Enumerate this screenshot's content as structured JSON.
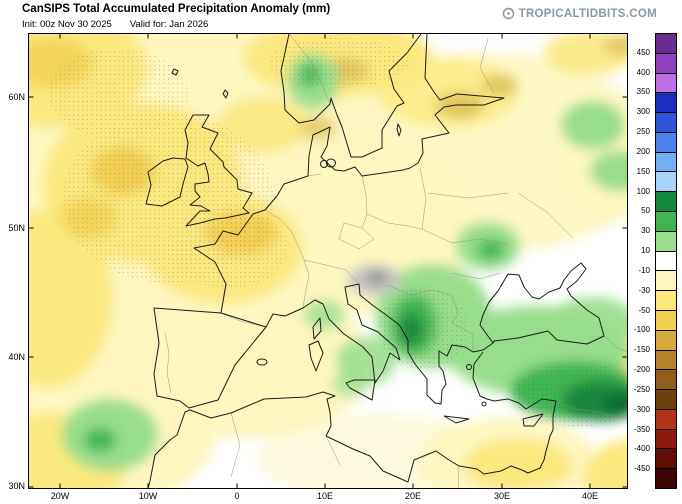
{
  "header": {
    "title": "CanSIPS Total Accumulated Precipitation Anomaly (mm)",
    "init": "Init: 00z Nov 30 2025",
    "valid": "Valid for: Jan 2026",
    "watermark": "TROPICALTIDBITS.COM"
  },
  "map": {
    "lat_labels": [
      "60N",
      "50N",
      "40N",
      "30N"
    ],
    "lon_labels": [
      "20W",
      "10W",
      "0",
      "10E",
      "20E",
      "30E",
      "40E"
    ]
  },
  "colorbar": {
    "tick_labels": [
      "450",
      "400",
      "350",
      "300",
      "250",
      "200",
      "150",
      "100",
      "50",
      "30",
      "10",
      "-10",
      "-30",
      "-50",
      "-100",
      "-150",
      "-200",
      "-250",
      "-300",
      "-350",
      "-400",
      "-450"
    ],
    "colors": [
      "#6b2c91",
      "#9141bf",
      "#c06ee3",
      "#1c2dbd",
      "#2d54d9",
      "#4a82ea",
      "#74aef3",
      "#a8d3fa",
      "#13873b",
      "#3fb552",
      "#97dd8b",
      "#ffffff",
      "#fdf6bf",
      "#fbe87f",
      "#f3cf52",
      "#d8a93c",
      "#b5822a",
      "#8f5e1d",
      "#6e4010",
      "#b3331a",
      "#8c1a0e",
      "#600d07",
      "#3d0503"
    ]
  }
}
